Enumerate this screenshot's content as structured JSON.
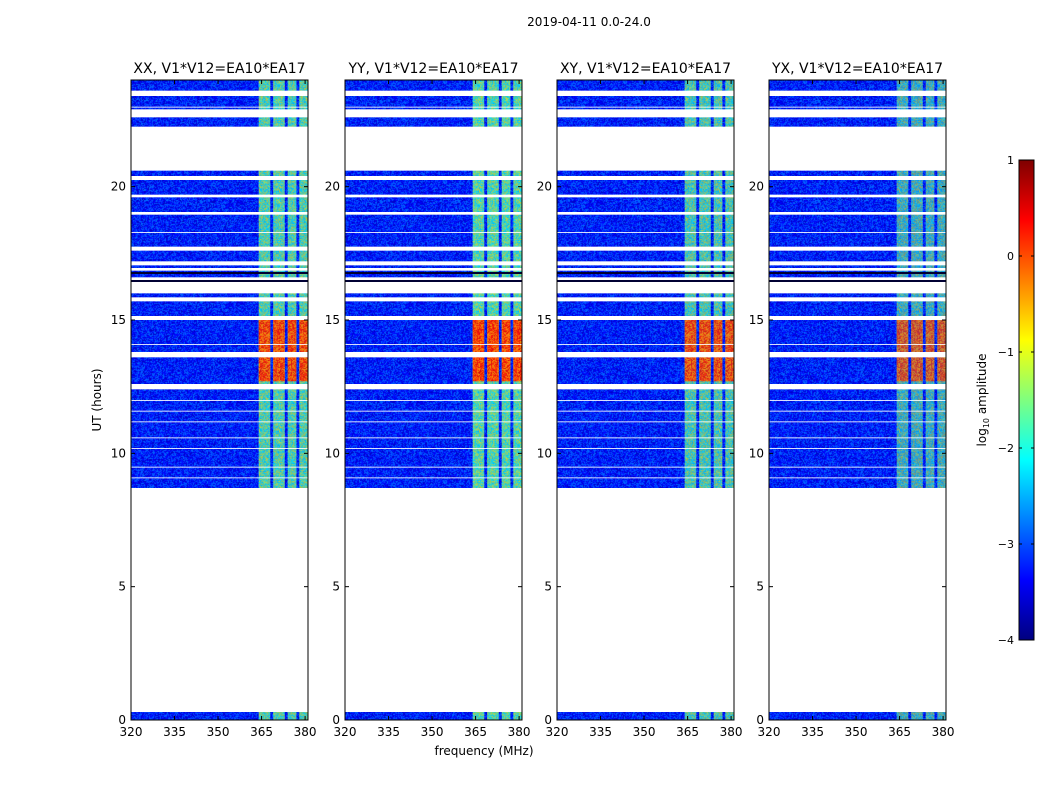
{
  "chart_data": {
    "type": "heatmap",
    "suptitle": "2019-04-11 0.0-24.0",
    "xlabel": "frequency (MHz)",
    "ylabel": "UT (hours)",
    "xlim": [
      320,
      381
    ],
    "ylim": [
      0,
      24
    ],
    "xticks": [
      320,
      335,
      350,
      365,
      380
    ],
    "yticks": [
      0,
      5,
      10,
      15,
      20
    ],
    "panels": [
      {
        "title": "XX, V1*V12=EA10*EA17",
        "rfi_scale": 1.0
      },
      {
        "title": "YY, V1*V12=EA10*EA17",
        "rfi_scale": 1.05
      },
      {
        "title": "XY, V1*V12=EA10*EA17",
        "rfi_scale": 0.95
      },
      {
        "title": "YX, V1*V12=EA10*EA17",
        "rfi_scale": 0.8
      }
    ],
    "colorbar": {
      "label": "log10 amplitude",
      "label_main": "log",
      "label_sub": "10",
      "label_rest": " amplitude",
      "range": [
        -4,
        1
      ],
      "ticks": [
        "1",
        "0",
        "−1",
        "−2",
        "−3",
        "−4"
      ],
      "colormap": [
        "#00007f",
        "#0000ff",
        "#007fff",
        "#00ffff",
        "#7fff7f",
        "#ffff00",
        "#ff7f00",
        "#ff0000",
        "#7f0000"
      ]
    },
    "observed_segments_ut": [
      [
        0.0,
        0.3
      ],
      [
        8.7,
        24.0
      ]
    ],
    "flagged_gaps_ut": [
      [
        12.4,
        12.6
      ],
      [
        13.6,
        13.8
      ],
      [
        15.0,
        15.15
      ],
      [
        15.7,
        15.85
      ],
      [
        16.0,
        16.6
      ],
      [
        16.85,
        16.95
      ],
      [
        17.05,
        17.2
      ],
      [
        17.6,
        17.75
      ],
      [
        18.95,
        19.05
      ],
      [
        19.6,
        19.7
      ],
      [
        20.25,
        20.4
      ],
      [
        20.6,
        22.25
      ],
      [
        22.6,
        22.9
      ],
      [
        23.4,
        23.6
      ]
    ],
    "rfi_band_mhz": [
      363,
      381
    ],
    "rfi_channels_mhz": [
      [
        364,
        368
      ],
      [
        369,
        373
      ],
      [
        374,
        377
      ],
      [
        378,
        381
      ]
    ],
    "background_log10": -3.3,
    "rfi_log10": {
      "quiet": -1.6,
      "active_13_15h": 0.1
    }
  }
}
